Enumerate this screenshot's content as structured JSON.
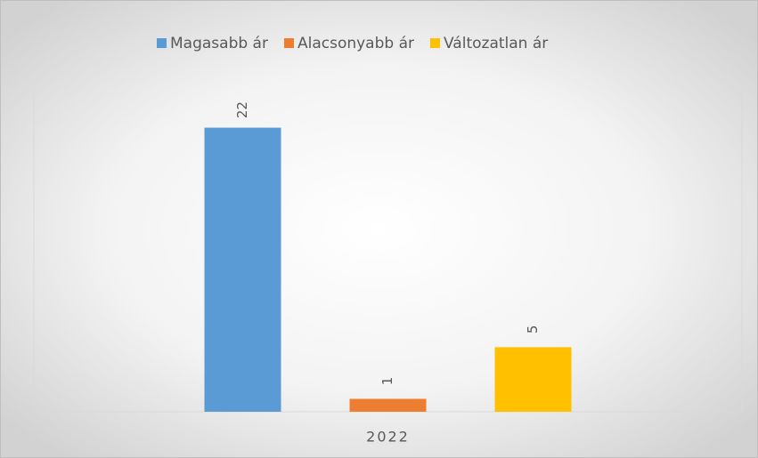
{
  "chart_data": {
    "type": "bar",
    "categories": [
      "2022"
    ],
    "series": [
      {
        "name": "Magasabb ár",
        "color": "#5b9bd5",
        "values": [
          22
        ]
      },
      {
        "name": "Alacsonyabb ár",
        "color": "#ed7d31",
        "values": [
          1
        ]
      },
      {
        "name": "Változatlan ár",
        "color": "#ffc000",
        "values": [
          5
        ]
      }
    ],
    "ylim": [
      0,
      25
    ],
    "legend": "top",
    "data_labels": true
  }
}
